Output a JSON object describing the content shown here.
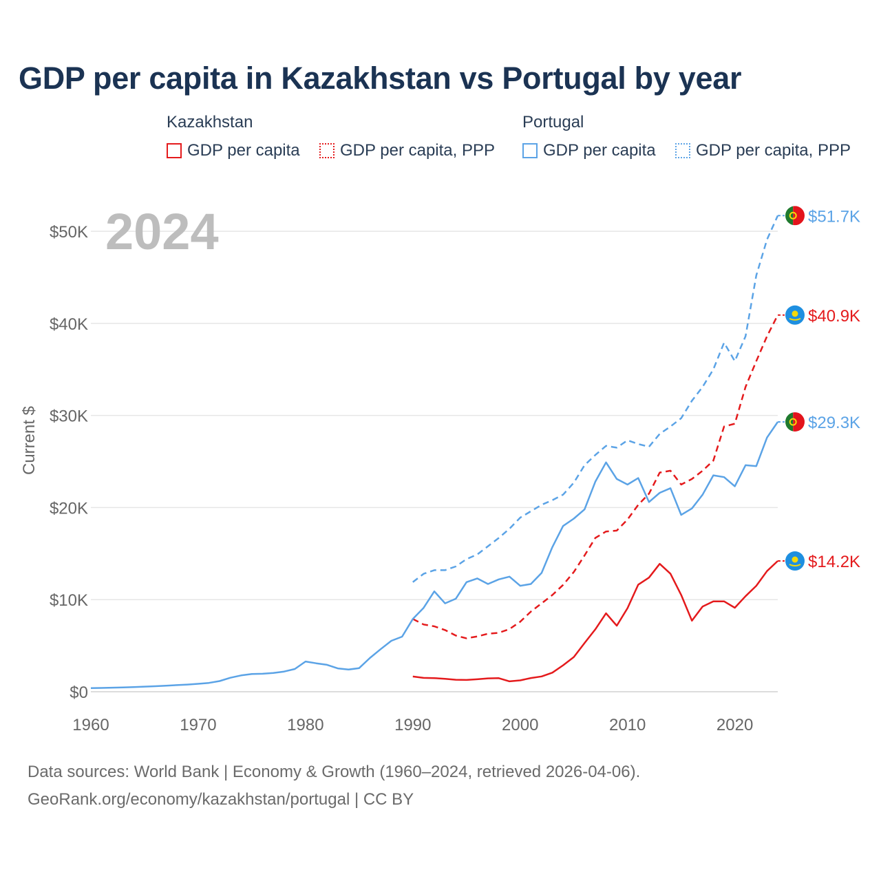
{
  "title": "GDP per capita in Kazakhstan vs Portugal by year",
  "legend": {
    "groups": [
      {
        "country": "Kazakhstan",
        "items": [
          "GDP per capita",
          "GDP per capita, PPP"
        ],
        "color": "#e41a1c"
      },
      {
        "country": "Portugal",
        "items": [
          "GDP per capita",
          "GDP per capita, PPP"
        ],
        "color": "#5ba3e6"
      }
    ]
  },
  "year_watermark": "2024",
  "footer": {
    "line1": "Data sources: World Bank | Economy & Growth (1960–2024, retrieved 2026-04-06).",
    "line2": "GeoRank.org/economy/kazakhstan/portugal | CC BY"
  },
  "chart_data": {
    "type": "line",
    "title": "GDP per capita in Kazakhstan vs Portugal by year",
    "xlabel": "",
    "ylabel": "Current $",
    "xlim": [
      1960,
      2024
    ],
    "ylim": [
      0,
      52000
    ],
    "x_ticks": [
      1960,
      1970,
      1980,
      1990,
      2000,
      2010,
      2020
    ],
    "y_ticks": [
      0,
      10000,
      20000,
      30000,
      40000,
      50000
    ],
    "y_tick_labels": [
      "$0",
      "$10K",
      "$20K",
      "$30K",
      "$40K",
      "$50K"
    ],
    "grid": true,
    "series": [
      {
        "name": "Kazakhstan GDP per capita",
        "country": "Kazakhstan",
        "metric": "GDP per capita",
        "color": "#e41a1c",
        "dash": "solid",
        "end_label": "$14.2K",
        "flag": "kazakhstan-flag",
        "start_year": 1990,
        "values": [
          1650,
          1500,
          1480,
          1400,
          1300,
          1280,
          1350,
          1450,
          1470,
          1130,
          1230,
          1490,
          1660,
          2070,
          2870,
          3770,
          5290,
          6770,
          8510,
          7170,
          9070,
          11630,
          12390,
          13890,
          12810,
          10510,
          7710,
          9250,
          9810,
          9810,
          9120,
          10370,
          11500,
          13100,
          14200
        ]
      },
      {
        "name": "Kazakhstan GDP per capita, PPP",
        "country": "Kazakhstan",
        "metric": "GDP per capita, PPP",
        "color": "#e41a1c",
        "dash": "dashed",
        "end_label": "$40.9K",
        "flag": "kazakhstan-flag",
        "start_year": 1990,
        "values": [
          7900,
          7300,
          7100,
          6700,
          6100,
          5800,
          6000,
          6300,
          6400,
          6800,
          7600,
          8700,
          9600,
          10500,
          11600,
          13000,
          14800,
          16700,
          17400,
          17500,
          18700,
          20300,
          21500,
          23800,
          24000,
          22500,
          23100,
          24000,
          25100,
          28800,
          29100,
          33100,
          35900,
          38600,
          40900
        ]
      },
      {
        "name": "Portugal GDP per capita",
        "country": "Portugal",
        "metric": "GDP per capita",
        "color": "#5ba3e6",
        "dash": "solid",
        "end_label": "$29.3K",
        "flag": "portugal-flag",
        "start_year": 1960,
        "values": [
          390,
          410,
          440,
          470,
          500,
          550,
          600,
          660,
          720,
          780,
          860,
          960,
          1160,
          1520,
          1770,
          1920,
          1950,
          2030,
          2190,
          2470,
          3280,
          3090,
          2920,
          2530,
          2410,
          2560,
          3660,
          4620,
          5530,
          5980,
          7900,
          9100,
          10900,
          9600,
          10100,
          11900,
          12300,
          11700,
          12200,
          12500,
          11500,
          11700,
          12900,
          15700,
          18000,
          18800,
          19800,
          22800,
          24900,
          23100,
          22500,
          23200,
          20600,
          21600,
          22100,
          19200,
          19900,
          21400,
          23500,
          23300,
          22300,
          24600,
          24500,
          27600,
          29300
        ]
      },
      {
        "name": "Portugal GDP per capita, PPP",
        "country": "Portugal",
        "metric": "GDP per capita, PPP",
        "color": "#5ba3e6",
        "dash": "dashed",
        "end_label": "$51.7K",
        "flag": "portugal-flag",
        "start_year": 1990,
        "values": [
          11900,
          12800,
          13200,
          13200,
          13600,
          14400,
          14900,
          15800,
          16700,
          17700,
          18900,
          19600,
          20300,
          20800,
          21400,
          22700,
          24600,
          25700,
          26700,
          26500,
          27300,
          26900,
          26600,
          28000,
          28800,
          29700,
          31600,
          33100,
          35000,
          37900,
          35900,
          38600,
          45200,
          49100,
          51700
        ]
      }
    ]
  }
}
